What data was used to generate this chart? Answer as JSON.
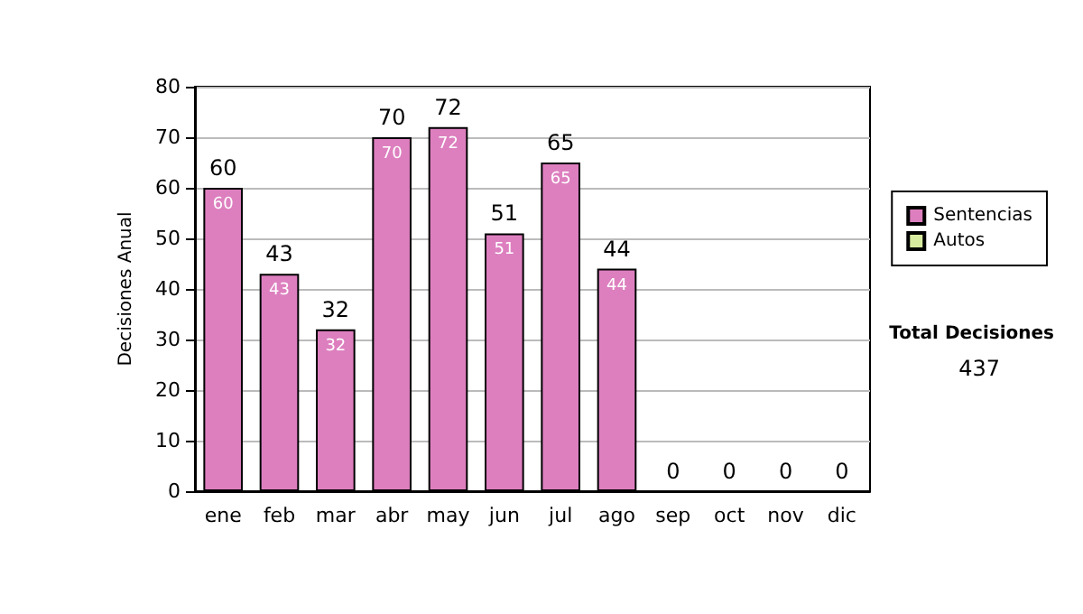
{
  "chart_data": {
    "type": "bar",
    "ylabel": "Decisiones Anual",
    "categories": [
      "ene",
      "feb",
      "mar",
      "abr",
      "may",
      "jun",
      "jul",
      "ago",
      "sep",
      "oct",
      "nov",
      "dic"
    ],
    "stacked": true,
    "series": [
      {
        "name": "Sentencias",
        "color": "#dd7fbf",
        "values": [
          60,
          43,
          32,
          70,
          72,
          51,
          65,
          44,
          0,
          0,
          0,
          0
        ],
        "value_labels": [
          "60",
          "43",
          "32",
          "70",
          "72",
          "51",
          "65",
          "44",
          null,
          null,
          null,
          null
        ]
      },
      {
        "name": "Autos",
        "color": "#d8eca0",
        "values": [
          0,
          0,
          0,
          0,
          0,
          0,
          0,
          0,
          0,
          0,
          0,
          0
        ]
      }
    ],
    "totals": [
      "60",
      "43",
      "32",
      "70",
      "72",
      "51",
      "65",
      "44",
      "0",
      "0",
      "0",
      "0"
    ],
    "ylim": [
      0,
      80
    ],
    "yticks": [
      0,
      10,
      20,
      30,
      40,
      50,
      60,
      70,
      80
    ],
    "grid": "y",
    "legend": "right",
    "annotations": [
      "Total Decisiones",
      "437"
    ]
  }
}
